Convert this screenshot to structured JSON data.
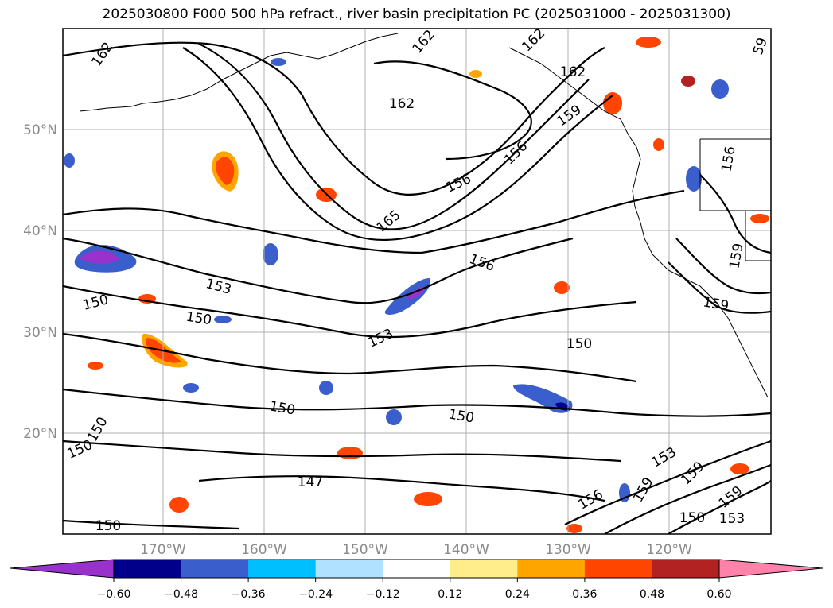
{
  "title": "2025030800 F000 500 hPa refract., river basin precipitation PC (2025031000 - 2025031300)",
  "map": {
    "lat_labels": [
      "50°N",
      "40°N",
      "30°N",
      "20°N"
    ],
    "lon_labels": [
      "170°W",
      "160°W",
      "150°W",
      "140°W",
      "130°W",
      "120°W"
    ],
    "contour_levels": [
      147,
      150,
      153,
      156,
      159,
      162,
      165
    ],
    "contour_labels": [
      {
        "text": "162",
        "rot": -55
      },
      {
        "text": "162",
        "rot": -50
      },
      {
        "text": "162",
        "rot": 0
      },
      {
        "text": "162",
        "rot": -45
      },
      {
        "text": "162",
        "rot": 0
      },
      {
        "text": "159",
        "rot": -35
      },
      {
        "text": "156",
        "rot": -45
      },
      {
        "text": "165",
        "rot": -40
      },
      {
        "text": "156",
        "rot": -25
      },
      {
        "text": "153",
        "rot": 15
      },
      {
        "text": "150",
        "rot": 8
      },
      {
        "text": "156",
        "rot": 20
      },
      {
        "text": "153",
        "rot": -25
      },
      {
        "text": "150",
        "rot": 0
      },
      {
        "text": "150",
        "rot": -15
      },
      {
        "text": "150",
        "rot": 10
      },
      {
        "text": "150",
        "rot": -60
      },
      {
        "text": "150",
        "rot": 10
      },
      {
        "text": "147",
        "rot": 0
      },
      {
        "text": "150",
        "rot": 0
      },
      {
        "text": "156",
        "rot": -30
      },
      {
        "text": "159",
        "rot": -60
      },
      {
        "text": "153",
        "rot": -30
      },
      {
        "text": "159",
        "rot": -45
      },
      {
        "text": "159",
        "rot": -40
      },
      {
        "text": "150",
        "rot": 0
      },
      {
        "text": "153",
        "rot": 0
      },
      {
        "text": "150",
        "rot": -25
      },
      {
        "text": "156",
        "rot": -80
      },
      {
        "text": "159",
        "rot": -80
      },
      {
        "text": "159",
        "rot": 10
      },
      {
        "text": "59",
        "rot": -70
      }
    ]
  },
  "colorbar": {
    "ticks": [
      "−0.60",
      "−0.48",
      "−0.36",
      "−0.24",
      "−0.12",
      "0.12",
      "0.24",
      "0.36",
      "0.48",
      "0.60"
    ],
    "colors": [
      "#9932cc",
      "#00008b",
      "#3a5fcd",
      "#00bfff",
      "#b0e2ff",
      "#ffffff",
      "#ffec8b",
      "#ffa500",
      "#ff4500",
      "#b22222",
      "#ff82ab"
    ]
  }
}
